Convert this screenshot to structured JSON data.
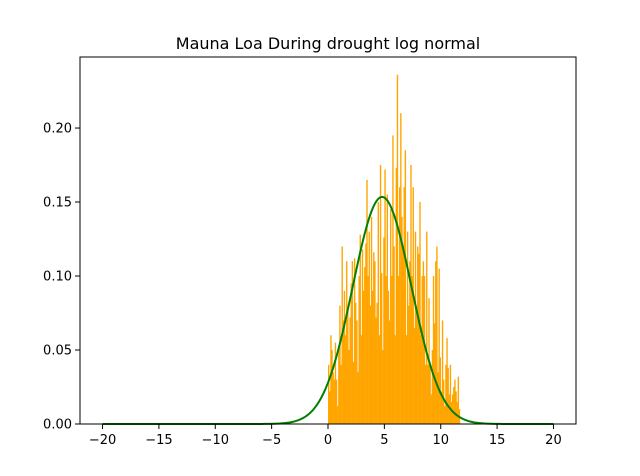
{
  "chart_data": {
    "type": "bar",
    "title": "Mauna Loa During drought log normal",
    "xlabel": "",
    "ylabel": "",
    "xlim": [
      -22.0,
      22.0
    ],
    "ylim": [
      0.0,
      0.248
    ],
    "x_ticks": [
      -20,
      -15,
      -10,
      -5,
      0,
      5,
      10,
      15,
      20
    ],
    "x_tick_labels": [
      "−20",
      "−15",
      "−10",
      "−5",
      "0",
      "5",
      "10",
      "15",
      "20"
    ],
    "y_ticks": [
      0.0,
      0.05,
      0.1,
      0.15,
      0.2
    ],
    "y_tick_labels": [
      "0.00",
      "0.05",
      "0.10",
      "0.15",
      "0.20"
    ],
    "grid": false,
    "legend": "none",
    "series": [
      {
        "kind": "histogram",
        "color": "#ffa500",
        "bin_width": 0.1,
        "bins_x": [
          0.0,
          0.1,
          0.2,
          0.3,
          0.4,
          0.5,
          0.6,
          0.7,
          0.8,
          0.9,
          1.0,
          1.1,
          1.2,
          1.3,
          1.4,
          1.5,
          1.6,
          1.7,
          1.8,
          1.9,
          2.0,
          2.1,
          2.2,
          2.3,
          2.4,
          2.5,
          2.6,
          2.7,
          2.8,
          2.9,
          3.0,
          3.1,
          3.2,
          3.3,
          3.4,
          3.5,
          3.6,
          3.7,
          3.8,
          3.9,
          4.0,
          4.1,
          4.2,
          4.3,
          4.4,
          4.5,
          4.6,
          4.7,
          4.8,
          4.9,
          5.0,
          5.1,
          5.2,
          5.3,
          5.4,
          5.5,
          5.6,
          5.7,
          5.8,
          5.9,
          6.0,
          6.1,
          6.2,
          6.3,
          6.4,
          6.5,
          6.6,
          6.7,
          6.8,
          6.9,
          7.0,
          7.1,
          7.2,
          7.3,
          7.4,
          7.5,
          7.6,
          7.7,
          7.8,
          7.9,
          8.0,
          8.1,
          8.2,
          8.3,
          8.4,
          8.5,
          8.6,
          8.7,
          8.8,
          8.9,
          9.0,
          9.1,
          9.2,
          9.3,
          9.4,
          9.5,
          9.6,
          9.7,
          9.8,
          9.9,
          10.0,
          10.1,
          10.2,
          10.3,
          10.4,
          10.5,
          10.6,
          10.7,
          10.8,
          10.9,
          11.0,
          11.1,
          11.2,
          11.3,
          11.4,
          11.5,
          11.6
        ],
        "values": [
          0.04,
          0.022,
          0.06,
          0.05,
          0.035,
          0.03,
          0.055,
          0.03,
          0.012,
          0.05,
          0.08,
          0.04,
          0.12,
          0.07,
          0.09,
          0.06,
          0.11,
          0.08,
          0.05,
          0.072,
          0.095,
          0.11,
          0.042,
          0.112,
          0.082,
          0.07,
          0.035,
          0.1,
          0.128,
          0.06,
          0.118,
          0.09,
          0.106,
          0.122,
          0.165,
          0.1,
          0.13,
          0.08,
          0.14,
          0.09,
          0.116,
          0.11,
          0.072,
          0.082,
          0.15,
          0.06,
          0.175,
          0.102,
          0.05,
          0.126,
          0.172,
          0.1,
          0.155,
          0.09,
          0.07,
          0.145,
          0.1,
          0.195,
          0.12,
          0.06,
          0.173,
          0.236,
          0.1,
          0.16,
          0.21,
          0.14,
          0.12,
          0.16,
          0.185,
          0.06,
          0.13,
          0.08,
          0.11,
          0.175,
          0.1,
          0.16,
          0.065,
          0.13,
          0.08,
          0.12,
          0.115,
          0.15,
          0.06,
          0.1,
          0.11,
          0.1,
          0.04,
          0.13,
          0.04,
          0.085,
          0.04,
          0.02,
          0.05,
          0.1,
          0.068,
          0.11,
          0.12,
          0.035,
          0.105,
          0.045,
          0.022,
          0.07,
          0.03,
          0.012,
          0.04,
          0.058,
          0.038,
          0.02,
          0.04,
          0.015,
          0.02,
          0.025,
          0.03,
          0.022,
          0.015,
          0.032,
          0.01
        ]
      },
      {
        "kind": "line",
        "color": "#008000",
        "x_range": [
          -20,
          20
        ],
        "curve": "normal_pdf",
        "mean": 4.8,
        "sd": 2.6
      }
    ]
  }
}
